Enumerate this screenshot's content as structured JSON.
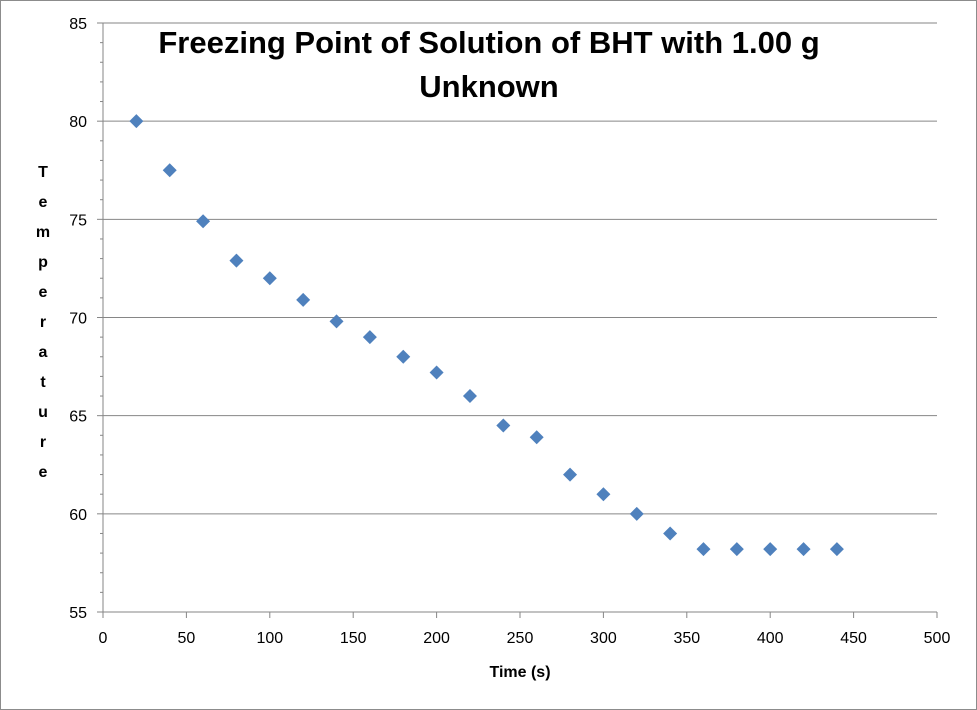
{
  "chart_data": {
    "type": "scatter",
    "title_lines": [
      "Freezing Point of Solution of BHT with 1.00 g",
      "Unknown"
    ],
    "xlabel": "Time (s)",
    "ylabel": "Temperature",
    "xlim": [
      0,
      500
    ],
    "ylim": [
      55,
      85
    ],
    "xticks": [
      0,
      50,
      100,
      150,
      200,
      250,
      300,
      350,
      400,
      450,
      500
    ],
    "yticks": [
      55,
      60,
      65,
      70,
      75,
      80,
      85
    ],
    "grid": "horizontal major",
    "legend": "none",
    "marker": "diamond",
    "marker_color": "#4f81bd",
    "series": [
      {
        "points": [
          {
            "x": 20,
            "y": 80.0
          },
          {
            "x": 40,
            "y": 77.5
          },
          {
            "x": 60,
            "y": 74.9
          },
          {
            "x": 80,
            "y": 72.9
          },
          {
            "x": 100,
            "y": 72.0
          },
          {
            "x": 120,
            "y": 70.9
          },
          {
            "x": 140,
            "y": 69.8
          },
          {
            "x": 160,
            "y": 69.0
          },
          {
            "x": 180,
            "y": 68.0
          },
          {
            "x": 200,
            "y": 67.2
          },
          {
            "x": 220,
            "y": 66.0
          },
          {
            "x": 240,
            "y": 64.5
          },
          {
            "x": 260,
            "y": 63.9
          },
          {
            "x": 280,
            "y": 62.0
          },
          {
            "x": 300,
            "y": 61.0
          },
          {
            "x": 320,
            "y": 60.0
          },
          {
            "x": 340,
            "y": 59.0
          },
          {
            "x": 360,
            "y": 58.2
          },
          {
            "x": 380,
            "y": 58.2
          },
          {
            "x": 400,
            "y": 58.2
          },
          {
            "x": 420,
            "y": 58.2
          },
          {
            "x": 440,
            "y": 58.2
          }
        ]
      }
    ]
  }
}
